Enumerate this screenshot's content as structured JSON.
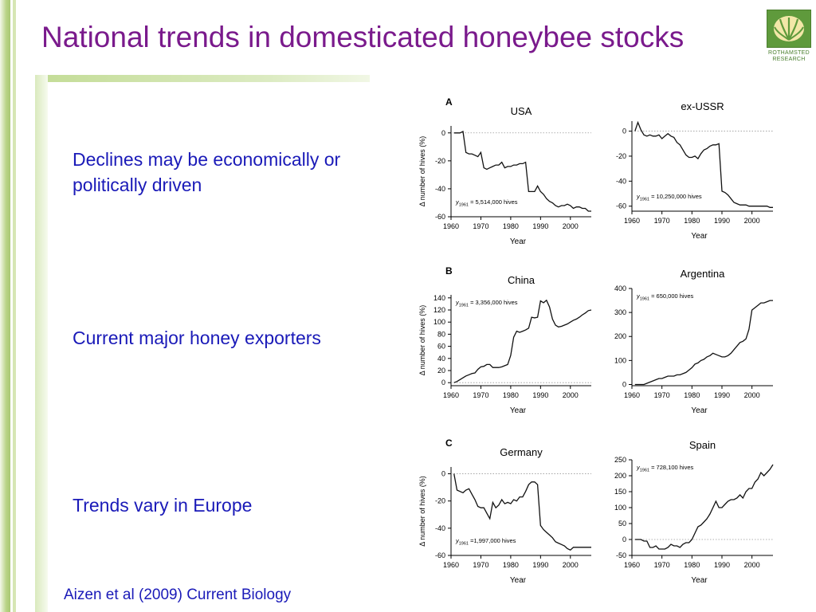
{
  "slide": {
    "title": "National trends in domesticated honeybee stocks",
    "bullets": [
      "Declines may be economically or politically driven",
      "Current major honey exporters",
      "Trends vary in Europe"
    ],
    "citation": "Aizen et al (2009) Current Biology"
  },
  "logo": {
    "name": "leaf-logo-icon",
    "text_line1": "ROTHAMSTED",
    "text_line2": "RESEARCH"
  },
  "colors": {
    "title": "#7a1a8c",
    "bullet_text": "#1a1ab8",
    "accent_green": "#a9c873",
    "logo_green": "#5f9a3c"
  },
  "chart_data": [
    {
      "type": "line",
      "panel": "A",
      "title": "USA",
      "xlabel": "Year",
      "ylabel": "Δ number of hives (%)",
      "xlim": [
        1960,
        2007
      ],
      "ylim": [
        -60,
        5
      ],
      "xticks": [
        1960,
        1970,
        1980,
        1990,
        2000
      ],
      "yticks": [
        0,
        -20,
        -40,
        -60
      ],
      "annotation": {
        "sym": "y",
        "sub": "1961",
        "text": " = 5,514,000 hives"
      },
      "zero_line": true,
      "x": [
        1961,
        1962,
        1963,
        1964,
        1965,
        1966,
        1967,
        1968,
        1969,
        1970,
        1971,
        1972,
        1973,
        1974,
        1975,
        1976,
        1977,
        1978,
        1979,
        1980,
        1981,
        1982,
        1983,
        1984,
        1985,
        1986,
        1987,
        1988,
        1989,
        1990,
        1991,
        1992,
        1993,
        1994,
        1995,
        1996,
        1997,
        1998,
        1999,
        2000,
        2001,
        2002,
        2003,
        2004,
        2005,
        2006,
        2007
      ],
      "y": [
        0,
        0,
        0,
        1,
        -14,
        -15,
        -15,
        -16,
        -17,
        -14,
        -25,
        -26,
        -25,
        -24,
        -23,
        -23,
        -21,
        -25,
        -24,
        -24,
        -23,
        -23,
        -22,
        -22,
        -21,
        -42,
        -42,
        -42,
        -38,
        -42,
        -44,
        -47,
        -49,
        -50,
        -52,
        -53,
        -52,
        -52,
        -51,
        -52,
        -54,
        -53,
        -53,
        -54,
        -54,
        -56,
        -56
      ]
    },
    {
      "type": "line",
      "title": "ex-USSR",
      "xlabel": "Year",
      "ylabel": "",
      "xlim": [
        1960,
        2007
      ],
      "ylim": [
        -64,
        8
      ],
      "xticks": [
        1960,
        1970,
        1980,
        1990,
        2000
      ],
      "yticks": [
        0,
        -20,
        -40,
        -60
      ],
      "annotation": {
        "sym": "y",
        "sub": "1961",
        "text": " = 10,250,000 hives"
      },
      "zero_line": true,
      "x": [
        1961,
        1962,
        1963,
        1964,
        1965,
        1966,
        1967,
        1968,
        1969,
        1970,
        1971,
        1972,
        1973,
        1974,
        1975,
        1976,
        1977,
        1978,
        1979,
        1980,
        1981,
        1982,
        1983,
        1984,
        1985,
        1986,
        1987,
        1988,
        1989,
        1990,
        1991,
        1992,
        1993,
        1994,
        1995,
        1996,
        1997,
        1998,
        1999,
        2000,
        2001,
        2002,
        2003,
        2004,
        2005,
        2006,
        2007
      ],
      "y": [
        0,
        7,
        1,
        -3,
        -4,
        -3,
        -4,
        -4,
        -3,
        -6,
        -4,
        -2,
        -4,
        -5,
        -9,
        -11,
        -15,
        -19,
        -21,
        -21,
        -20,
        -22,
        -18,
        -15,
        -14,
        -12,
        -11,
        -11,
        -10,
        -48,
        -49,
        -51,
        -54,
        -57,
        -58,
        -59,
        -59,
        -59,
        -60,
        -60,
        -60,
        -60,
        -60,
        -60,
        -60,
        -61,
        -61
      ]
    },
    {
      "type": "line",
      "panel": "B",
      "title": "China",
      "xlabel": "Year",
      "ylabel": "Δ number of hives (%)",
      "xlim": [
        1960,
        2007
      ],
      "ylim": [
        -5,
        145
      ],
      "xticks": [
        1960,
        1970,
        1980,
        1990,
        2000
      ],
      "yticks": [
        0,
        20,
        40,
        60,
        80,
        100,
        120,
        140
      ],
      "annotation": {
        "sym": "y",
        "sub": "1961",
        "text": " = 3,356,000 hives"
      },
      "zero_line": true,
      "x": [
        1961,
        1962,
        1963,
        1964,
        1965,
        1966,
        1967,
        1968,
        1969,
        1970,
        1971,
        1972,
        1973,
        1974,
        1975,
        1976,
        1977,
        1978,
        1979,
        1980,
        1981,
        1982,
        1983,
        1984,
        1985,
        1986,
        1987,
        1988,
        1989,
        1990,
        1991,
        1992,
        1993,
        1994,
        1995,
        1996,
        1997,
        1998,
        1999,
        2000,
        2001,
        2002,
        2003,
        2004,
        2005,
        2006,
        2007
      ],
      "y": [
        0,
        2,
        5,
        8,
        11,
        13,
        15,
        16,
        22,
        26,
        27,
        30,
        30,
        25,
        25,
        25,
        26,
        28,
        30,
        45,
        75,
        85,
        83,
        85,
        87,
        90,
        108,
        107,
        108,
        135,
        132,
        136,
        125,
        105,
        95,
        92,
        93,
        95,
        97,
        100,
        103,
        105,
        108,
        112,
        115,
        119,
        120
      ]
    },
    {
      "type": "line",
      "title": "Argentina",
      "xlabel": "Year",
      "ylabel": "",
      "xlim": [
        1960,
        2007
      ],
      "ylim": [
        -5,
        400
      ],
      "xticks": [
        1960,
        1970,
        1980,
        1990,
        2000
      ],
      "yticks": [
        0,
        100,
        200,
        300,
        400
      ],
      "annotation": {
        "sym": "y",
        "sub": "1961",
        "text": " = 650,000 hives"
      },
      "zero_line": false,
      "x": [
        1961,
        1962,
        1963,
        1964,
        1965,
        1966,
        1967,
        1968,
        1969,
        1970,
        1971,
        1972,
        1973,
        1974,
        1975,
        1976,
        1977,
        1978,
        1979,
        1980,
        1981,
        1982,
        1983,
        1984,
        1985,
        1986,
        1987,
        1988,
        1989,
        1990,
        1991,
        1992,
        1993,
        1994,
        1995,
        1996,
        1997,
        1998,
        1999,
        2000,
        2001,
        2002,
        2003,
        2004,
        2005,
        2006,
        2007
      ],
      "y": [
        0,
        0,
        0,
        0,
        5,
        10,
        15,
        20,
        25,
        25,
        30,
        35,
        35,
        35,
        40,
        40,
        45,
        50,
        60,
        70,
        85,
        90,
        100,
        105,
        115,
        120,
        130,
        125,
        120,
        115,
        115,
        120,
        130,
        145,
        160,
        175,
        180,
        190,
        230,
        310,
        320,
        330,
        340,
        340,
        345,
        350,
        350
      ]
    },
    {
      "type": "line",
      "panel": "C",
      "title": "Germany",
      "xlabel": "Year",
      "ylabel": "Δ number of hives (%)",
      "xlim": [
        1960,
        2007
      ],
      "ylim": [
        -60,
        5
      ],
      "xticks": [
        1960,
        1970,
        1980,
        1990,
        2000
      ],
      "yticks": [
        0,
        -20,
        -40,
        -60
      ],
      "annotation": {
        "sym": "y",
        "sub": "1961",
        "text": " =1,997,000 hives"
      },
      "zero_line": true,
      "x": [
        1961,
        1962,
        1963,
        1964,
        1965,
        1966,
        1967,
        1968,
        1969,
        1970,
        1971,
        1972,
        1973,
        1974,
        1975,
        1976,
        1977,
        1978,
        1979,
        1980,
        1981,
        1982,
        1983,
        1984,
        1985,
        1986,
        1987,
        1988,
        1989,
        1990,
        1991,
        1992,
        1993,
        1994,
        1995,
        1996,
        1997,
        1998,
        1999,
        2000,
        2001,
        2002,
        2003,
        2004,
        2005,
        2006,
        2007
      ],
      "y": [
        0,
        -12,
        -13,
        -14,
        -12,
        -11,
        -15,
        -19,
        -24,
        -25,
        -25,
        -29,
        -33,
        -21,
        -25,
        -23,
        -19,
        -22,
        -21,
        -22,
        -19,
        -20,
        -17,
        -17,
        -13,
        -8,
        -6,
        -6,
        -8,
        -38,
        -41,
        -43,
        -45,
        -47,
        -50,
        -51,
        -52,
        -53,
        -55,
        -56,
        -54,
        -54,
        -54,
        -54,
        -54,
        -54,
        -54
      ]
    },
    {
      "type": "line",
      "title": "Spain",
      "xlabel": "Year",
      "ylabel": "",
      "xlim": [
        1960,
        2007
      ],
      "ylim": [
        -50,
        250
      ],
      "xticks": [
        1960,
        1970,
        1980,
        1990,
        2000
      ],
      "yticks": [
        250,
        200,
        150,
        100,
        50,
        0,
        -50
      ],
      "annotation": {
        "sym": "y",
        "sub": "1961",
        "text": " = 728,100 hives"
      },
      "zero_line": true,
      "x": [
        1961,
        1962,
        1963,
        1964,
        1965,
        1966,
        1967,
        1968,
        1969,
        1970,
        1971,
        1972,
        1973,
        1974,
        1975,
        1976,
        1977,
        1978,
        1979,
        1980,
        1981,
        1982,
        1983,
        1984,
        1985,
        1986,
        1987,
        1988,
        1989,
        1990,
        1991,
        1992,
        1993,
        1994,
        1995,
        1996,
        1997,
        1998,
        1999,
        2000,
        2001,
        2002,
        2003,
        2004,
        2005,
        2006,
        2007
      ],
      "y": [
        0,
        0,
        0,
        -5,
        -5,
        -25,
        -25,
        -20,
        -30,
        -30,
        -30,
        -25,
        -15,
        -20,
        -20,
        -25,
        -15,
        -10,
        -10,
        0,
        20,
        40,
        45,
        55,
        65,
        80,
        100,
        120,
        100,
        100,
        110,
        120,
        125,
        125,
        130,
        140,
        130,
        150,
        160,
        160,
        180,
        190,
        210,
        200,
        210,
        220,
        235
      ]
    }
  ]
}
